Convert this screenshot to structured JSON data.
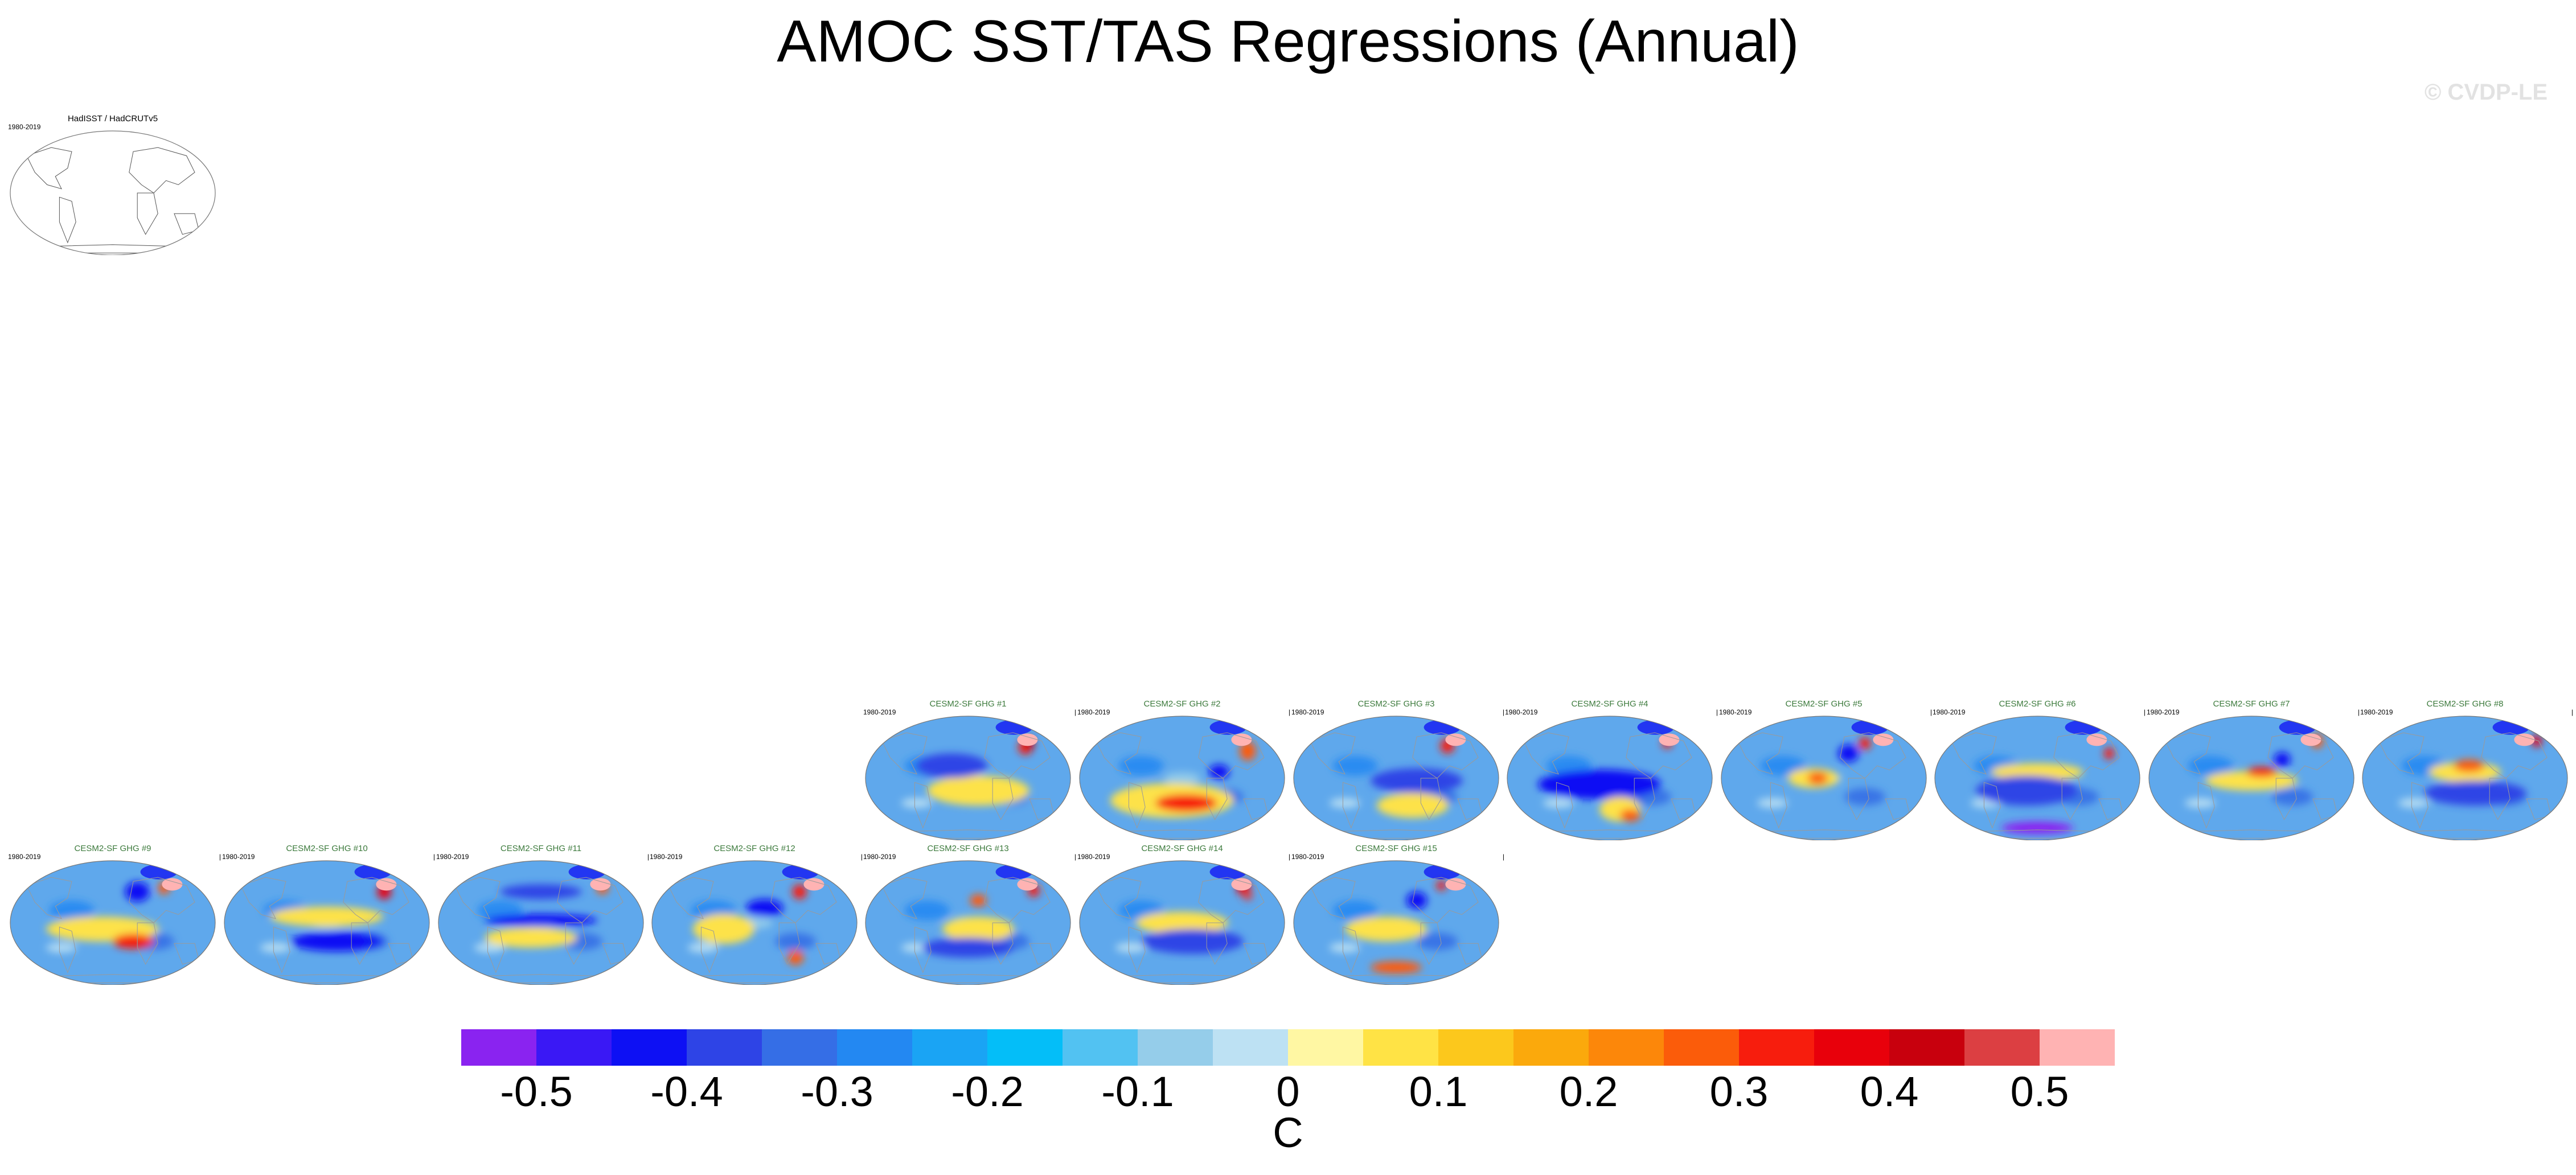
{
  "title": "AMOC SST/TAS Regressions (Annual)",
  "watermark": "© CVDP-LE",
  "chart_data": {
    "type": "heatmap",
    "title": "AMOC SST/TAS Regressions (Annual)",
    "units": "C",
    "levels": [
      -0.5,
      -0.45,
      -0.4,
      -0.35,
      -0.3,
      -0.25,
      -0.2,
      -0.15,
      -0.1,
      -0.05,
      0,
      0.05,
      0.1,
      0.15,
      0.2,
      0.25,
      0.3,
      0.35,
      0.4,
      0.45,
      0.5
    ],
    "colorbar_colors": [
      "#8a23f0",
      "#3a18f5",
      "#0d10f4",
      "#2e44e6",
      "#356ee6",
      "#2388f2",
      "#1aa4f4",
      "#04bef8",
      "#52c2f2",
      "#95cdea",
      "#bde1f3",
      "#fff7a3",
      "#ffe345",
      "#fcc81c",
      "#fba90c",
      "#fc870a",
      "#fb5c0a",
      "#f71d0d",
      "#e8000b",
      "#c8000d",
      "#dc3f42",
      "#ffb3b3"
    ],
    "colorbar_labels": [
      "-0.5",
      "-0.4",
      "-0.3",
      "-0.2",
      "-0.1",
      "0",
      "0.1",
      "0.2",
      "0.3",
      "0.4",
      "0.5"
    ],
    "panels": [
      {
        "title": "HadISST / HadCRUTv5",
        "period": "1980-2019",
        "kind": "observations"
      },
      {
        "title": "CESM2-SF GHG #1",
        "period": "1980-2019",
        "tick": "",
        "kind": "model"
      },
      {
        "title": "CESM2-SF GHG #2",
        "period": "1980-2019",
        "tick": "",
        "kind": "model"
      },
      {
        "title": "CESM2-SF GHG #3",
        "period": "1980-2019",
        "tick": "",
        "kind": "model"
      },
      {
        "title": "CESM2-SF GHG #4",
        "period": "1980-2019",
        "tick": "",
        "kind": "model"
      },
      {
        "title": "CESM2-SF GHG #5",
        "period": "1980-2019",
        "tick": "",
        "kind": "model"
      },
      {
        "title": "CESM2-SF GHG #6",
        "period": "1980-2019",
        "tick": "",
        "kind": "model"
      },
      {
        "title": "CESM2-SF GHG #7",
        "period": "1980-2019",
        "tick": "",
        "kind": "model"
      },
      {
        "title": "CESM2-SF GHG #8",
        "period": "1980-2019",
        "tick": "",
        "kind": "model"
      },
      {
        "title": "CESM2-SF GHG #9",
        "period": "1980-2019",
        "tick": "",
        "kind": "model"
      },
      {
        "title": "CESM2-SF GHG #10",
        "period": "1980-2019",
        "tick": "",
        "kind": "model"
      },
      {
        "title": "CESM2-SF GHG #11",
        "period": "1980-2019",
        "tick": "",
        "kind": "model"
      },
      {
        "title": "CESM2-SF GHG #12",
        "period": "1980-2019",
        "tick": "",
        "kind": "model"
      },
      {
        "title": "CESM2-SF GHG #13",
        "period": "1980-2019",
        "tick": "",
        "kind": "model"
      },
      {
        "title": "CESM2-SF GHG #14",
        "period": "1980-2019",
        "tick": "",
        "kind": "model"
      },
      {
        "title": "CESM2-SF GHG #15",
        "period": "1980-2019",
        "tick": "",
        "kind": "model"
      }
    ]
  }
}
